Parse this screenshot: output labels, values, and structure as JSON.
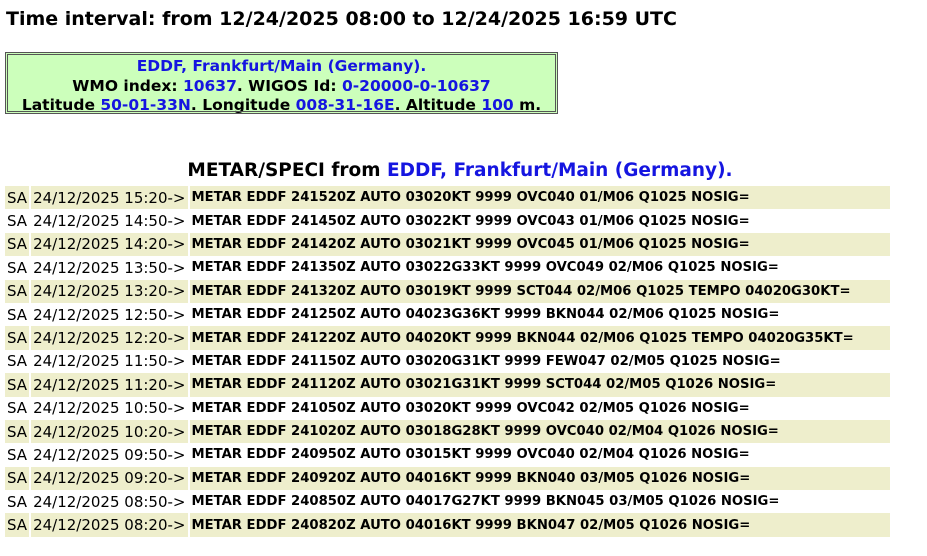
{
  "time_interval": {
    "label": "Time interval: from 12/24/2025 08:00 to 12/24/2025 16:59 UTC"
  },
  "station": {
    "name": "EDDF, Frankfurt/Main (Germany).",
    "wmo_label": "WMO index: ",
    "wmo": "10637",
    "wigos_label": ". WIGOS Id: ",
    "wigos": "0-20000-0-10637",
    "lat_label": "Latitude ",
    "lat": "50-01-33N",
    "lon_label": ". Longitude ",
    "lon": "008-31-16E",
    "alt_label": ". Altitude ",
    "alt": "100",
    "alt_unit": " m."
  },
  "heading": {
    "prefix": "METAR/SPECI from ",
    "station": "EDDF, Frankfurt/Main (Germany)."
  },
  "colors": {
    "info_bg": "#ccffbb",
    "row_shade": "#eeeecc",
    "link_blue": "#1515e0"
  },
  "reports": [
    {
      "day": "SA",
      "date": "24/12/2025 15:20->",
      "text": "METAR EDDF 241520Z AUTO 03020KT 9999 OVC040 01/M06 Q1025 NOSIG="
    },
    {
      "day": "SA",
      "date": "24/12/2025 14:50->",
      "text": "METAR EDDF 241450Z AUTO 03022KT 9999 OVC043 01/M06 Q1025 NOSIG="
    },
    {
      "day": "SA",
      "date": "24/12/2025 14:20->",
      "text": "METAR EDDF 241420Z AUTO 03021KT 9999 OVC045 01/M06 Q1025 NOSIG="
    },
    {
      "day": "SA",
      "date": "24/12/2025 13:50->",
      "text": "METAR EDDF 241350Z AUTO 03022G33KT 9999 OVC049 02/M06 Q1025 NOSIG="
    },
    {
      "day": "SA",
      "date": "24/12/2025 13:20->",
      "text": "METAR EDDF 241320Z AUTO 03019KT 9999 SCT044 02/M06 Q1025 TEMPO 04020G30KT="
    },
    {
      "day": "SA",
      "date": "24/12/2025 12:50->",
      "text": "METAR EDDF 241250Z AUTO 04023G36KT 9999 BKN044 02/M06 Q1025 NOSIG="
    },
    {
      "day": "SA",
      "date": "24/12/2025 12:20->",
      "text": "METAR EDDF 241220Z AUTO 04020KT 9999 BKN044 02/M06 Q1025 TEMPO 04020G35KT="
    },
    {
      "day": "SA",
      "date": "24/12/2025 11:50->",
      "text": "METAR EDDF 241150Z AUTO 03020G31KT 9999 FEW047 02/M05 Q1025 NOSIG="
    },
    {
      "day": "SA",
      "date": "24/12/2025 11:20->",
      "text": "METAR EDDF 241120Z AUTO 03021G31KT 9999 SCT044 02/M05 Q1026 NOSIG="
    },
    {
      "day": "SA",
      "date": "24/12/2025 10:50->",
      "text": "METAR EDDF 241050Z AUTO 03020KT 9999 OVC042 02/M05 Q1026 NOSIG="
    },
    {
      "day": "SA",
      "date": "24/12/2025 10:20->",
      "text": "METAR EDDF 241020Z AUTO 03018G28KT 9999 OVC040 02/M04 Q1026 NOSIG="
    },
    {
      "day": "SA",
      "date": "24/12/2025 09:50->",
      "text": "METAR EDDF 240950Z AUTO 03015KT 9999 OVC040 02/M04 Q1026 NOSIG="
    },
    {
      "day": "SA",
      "date": "24/12/2025 09:20->",
      "text": "METAR EDDF 240920Z AUTO 04016KT 9999 BKN040 03/M05 Q1026 NOSIG="
    },
    {
      "day": "SA",
      "date": "24/12/2025 08:50->",
      "text": "METAR EDDF 240850Z AUTO 04017G27KT 9999 BKN045 03/M05 Q1026 NOSIG="
    },
    {
      "day": "SA",
      "date": "24/12/2025 08:20->",
      "text": "METAR EDDF 240820Z AUTO 04016KT 9999 BKN047 02/M05 Q1026 NOSIG="
    }
  ]
}
